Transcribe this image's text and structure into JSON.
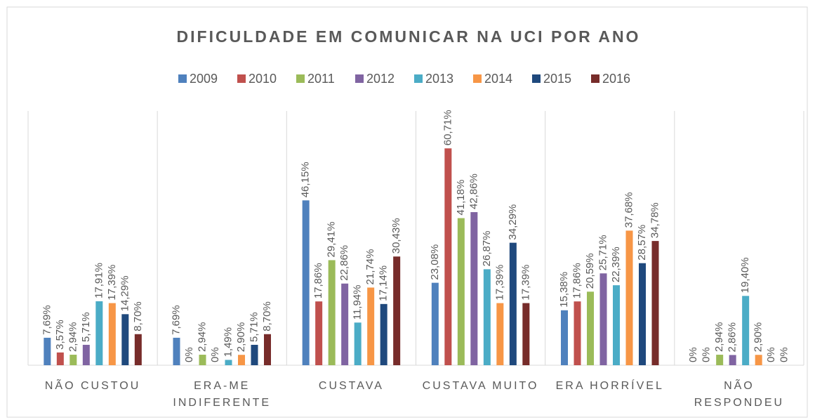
{
  "chart_data": {
    "type": "bar",
    "title": "DIFICULDADE EM COMUNICAR NA UCI POR ANO",
    "categories": [
      "NÃO CUSTOU",
      "ERA-ME INDIFERENTE",
      "CUSTAVA",
      "CUSTAVA MUITO",
      "ERA HORRÍVEL",
      "NÃO RESPONDEU"
    ],
    "ylim": [
      0,
      70
    ],
    "series": [
      {
        "name": "2009",
        "color": "#4f81bd",
        "values": [
          7.69,
          7.69,
          46.15,
          23.08,
          15.38,
          0
        ],
        "value_labels": [
          "7,69%",
          "7,69%",
          "46,15%",
          "23,08%",
          "15,38%",
          "0%"
        ]
      },
      {
        "name": "2010",
        "color": "#c0504d",
        "values": [
          3.57,
          0,
          17.86,
          60.71,
          17.86,
          0
        ],
        "value_labels": [
          "3,57%",
          "0%",
          "17,86%",
          "60,71%",
          "17,86%",
          "0%"
        ]
      },
      {
        "name": "2011",
        "color": "#9bbb59",
        "values": [
          2.94,
          2.94,
          29.41,
          41.18,
          20.59,
          2.94
        ],
        "value_labels": [
          "2,94%",
          "2,94%",
          "29,41%",
          "41,18%",
          "20,59%",
          "2,94%"
        ]
      },
      {
        "name": "2012",
        "color": "#8064a2",
        "values": [
          5.71,
          0,
          22.86,
          42.86,
          25.71,
          2.86
        ],
        "value_labels": [
          "5,71%",
          "0%",
          "22,86%",
          "42,86%",
          "25,71%",
          "2,86%"
        ]
      },
      {
        "name": "2013",
        "color": "#4bacc6",
        "values": [
          17.91,
          1.49,
          11.94,
          26.87,
          22.39,
          19.4
        ],
        "value_labels": [
          "17,91%",
          "1,49%",
          "11,94%",
          "26,87%",
          "22,39%",
          "19,40%"
        ]
      },
      {
        "name": "2014",
        "color": "#f79646",
        "values": [
          17.39,
          2.9,
          21.74,
          17.39,
          37.68,
          2.9
        ],
        "value_labels": [
          "17,39%",
          "2,90%",
          "21,74%",
          "17,39%",
          "37,68%",
          "2,90%"
        ]
      },
      {
        "name": "2015",
        "color": "#1f497d",
        "values": [
          14.29,
          5.71,
          17.14,
          34.29,
          28.57,
          0
        ],
        "value_labels": [
          "14,29%",
          "5,71%",
          "17,14%",
          "34,29%",
          "28,57%",
          "0%"
        ]
      },
      {
        "name": "2016",
        "color": "#772c2a",
        "values": [
          8.7,
          8.7,
          30.43,
          17.39,
          34.78,
          0
        ],
        "value_labels": [
          "8,70%",
          "8,70%",
          "30,43%",
          "17,39%",
          "34,78%",
          "0%"
        ]
      }
    ]
  }
}
